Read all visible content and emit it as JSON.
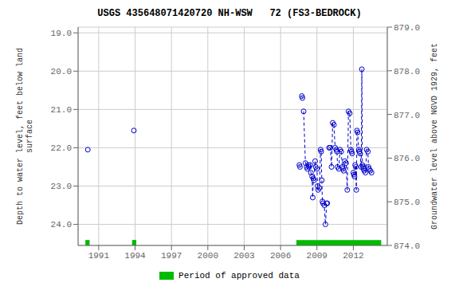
{
  "chart_data": {
    "type": "scatter",
    "title": "USGS 435648071420720 NH-WSW   72 (FS3-BEDROCK)",
    "ylabel": "Depth to water level, feet below land\nsurface",
    "y2label": "Groundwater level above NGVD 1929, feet",
    "xlim": [
      1989.3,
      2014.8
    ],
    "xticks": [
      1991,
      1994,
      1997,
      2000,
      2003,
      2006,
      2009,
      2012
    ],
    "ylim": [
      24.55,
      18.85
    ],
    "yticks": [
      {
        "value": 19.0,
        "label": "19.0"
      },
      {
        "value": 20.0,
        "label": "20.0"
      },
      {
        "value": 21.0,
        "label": "21.0"
      },
      {
        "value": 22.0,
        "label": "22.0"
      },
      {
        "value": 23.0,
        "label": "23.0"
      },
      {
        "value": 24.0,
        "label": "24.0"
      }
    ],
    "y2lim": [
      874.0,
      879.0
    ],
    "y2ticks": [
      {
        "value": 874.0,
        "label": "874.0"
      },
      {
        "value": 875.0,
        "label": "875.0"
      },
      {
        "value": 876.0,
        "label": "876.0"
      },
      {
        "value": 877.0,
        "label": "877.0"
      },
      {
        "value": 878.0,
        "label": "878.0"
      },
      {
        "value": 879.0,
        "label": "879.0"
      }
    ],
    "grid": true,
    "color": "#0000cc",
    "marker": "circle",
    "line_style": "dashed",
    "x": [
      1990.1,
      1993.9,
      2007.55,
      2007.6,
      2007.75,
      2007.8,
      2007.9,
      2008.05,
      2008.15,
      2008.2,
      2008.3,
      2008.35,
      2008.45,
      2008.5,
      2008.6,
      2008.65,
      2008.7,
      2008.75,
      2008.85,
      2008.9,
      2009.0,
      2009.05,
      2009.1,
      2009.2,
      2009.3,
      2009.35,
      2009.4,
      2009.45,
      2009.5,
      2009.6,
      2009.7,
      2009.8,
      2009.85,
      2010.0,
      2010.1,
      2010.2,
      2010.3,
      2010.4,
      2010.5,
      2010.6,
      2010.65,
      2010.7,
      2010.8,
      2010.9,
      2011.0,
      2011.1,
      2011.15,
      2011.2,
      2011.3,
      2011.4,
      2011.5,
      2011.6,
      2011.7,
      2011.8,
      2011.85,
      2011.9,
      2012.0,
      2012.05,
      2012.1,
      2012.15,
      2012.2,
      2012.25,
      2012.3,
      2012.35,
      2012.45,
      2012.5,
      2012.55,
      2012.65,
      2012.7,
      2012.75,
      2012.8,
      2012.85,
      2012.9,
      2013.0,
      2013.1,
      2013.2,
      2013.25,
      2013.3,
      2013.4,
      2013.5
    ],
    "values": [
      22.05,
      21.55,
      22.45,
      22.5,
      20.65,
      20.7,
      21.05,
      22.4,
      22.5,
      22.55,
      22.45,
      22.5,
      22.45,
      22.65,
      22.75,
      23.3,
      22.8,
      22.85,
      22.35,
      22.5,
      22.55,
      23.0,
      23.1,
      23.05,
      22.05,
      22.1,
      22.85,
      23.4,
      23.45,
      23.5,
      24.0,
      23.45,
      23.45,
      22.0,
      22.0,
      22.5,
      21.35,
      21.4,
      22.0,
      22.05,
      22.1,
      22.5,
      22.55,
      22.05,
      22.1,
      22.5,
      22.55,
      22.6,
      22.35,
      22.4,
      23.1,
      21.05,
      21.1,
      22.05,
      22.1,
      22.15,
      22.65,
      22.7,
      22.75,
      22.45,
      22.5,
      23.1,
      21.55,
      21.6,
      22.05,
      22.1,
      22.15,
      22.5,
      19.95,
      22.45,
      22.5,
      22.55,
      22.6,
      22.65,
      22.05,
      22.1,
      22.5,
      22.55,
      22.6,
      22.65
    ],
    "line_groups": [
      [
        2007.55,
        2007.6
      ],
      [
        2007.75,
        2007.8
      ],
      [
        2007.9,
        2008.05,
        2008.15,
        2008.2,
        2008.3,
        2008.35,
        2008.45,
        2008.5,
        2008.6,
        2008.65,
        2008.7,
        2008.75,
        2008.85,
        2008.9,
        2009.0,
        2009.05,
        2009.1,
        2009.2,
        2009.3,
        2009.35,
        2009.4,
        2009.45,
        2009.5,
        2009.6,
        2009.7,
        2009.8,
        2009.85
      ],
      [
        2010.0,
        2010.1,
        2010.2,
        2010.3,
        2010.4,
        2010.5,
        2010.6,
        2010.65,
        2010.7,
        2010.8,
        2010.9
      ],
      [
        2011.0,
        2011.1,
        2011.15,
        2011.2,
        2011.3,
        2011.4,
        2011.5,
        2011.6,
        2011.7,
        2011.8,
        2011.85,
        2011.9
      ],
      [
        2012.0,
        2012.05,
        2012.1,
        2012.15,
        2012.2,
        2012.25,
        2012.3,
        2012.35,
        2012.45,
        2012.5,
        2012.55,
        2012.65,
        2012.7,
        2012.75,
        2012.8,
        2012.85,
        2012.9
      ],
      [
        2013.0,
        2013.1,
        2013.2,
        2013.25,
        2013.3,
        2013.4,
        2013.5
      ]
    ],
    "approved_periods": {
      "name": "Period of approved data",
      "color": "#00bb00",
      "periods": [
        [
          1989.9,
          1990.25
        ],
        [
          1993.75,
          1994.1
        ],
        [
          2007.3,
          2014.3
        ]
      ]
    },
    "legend": "bottom"
  }
}
